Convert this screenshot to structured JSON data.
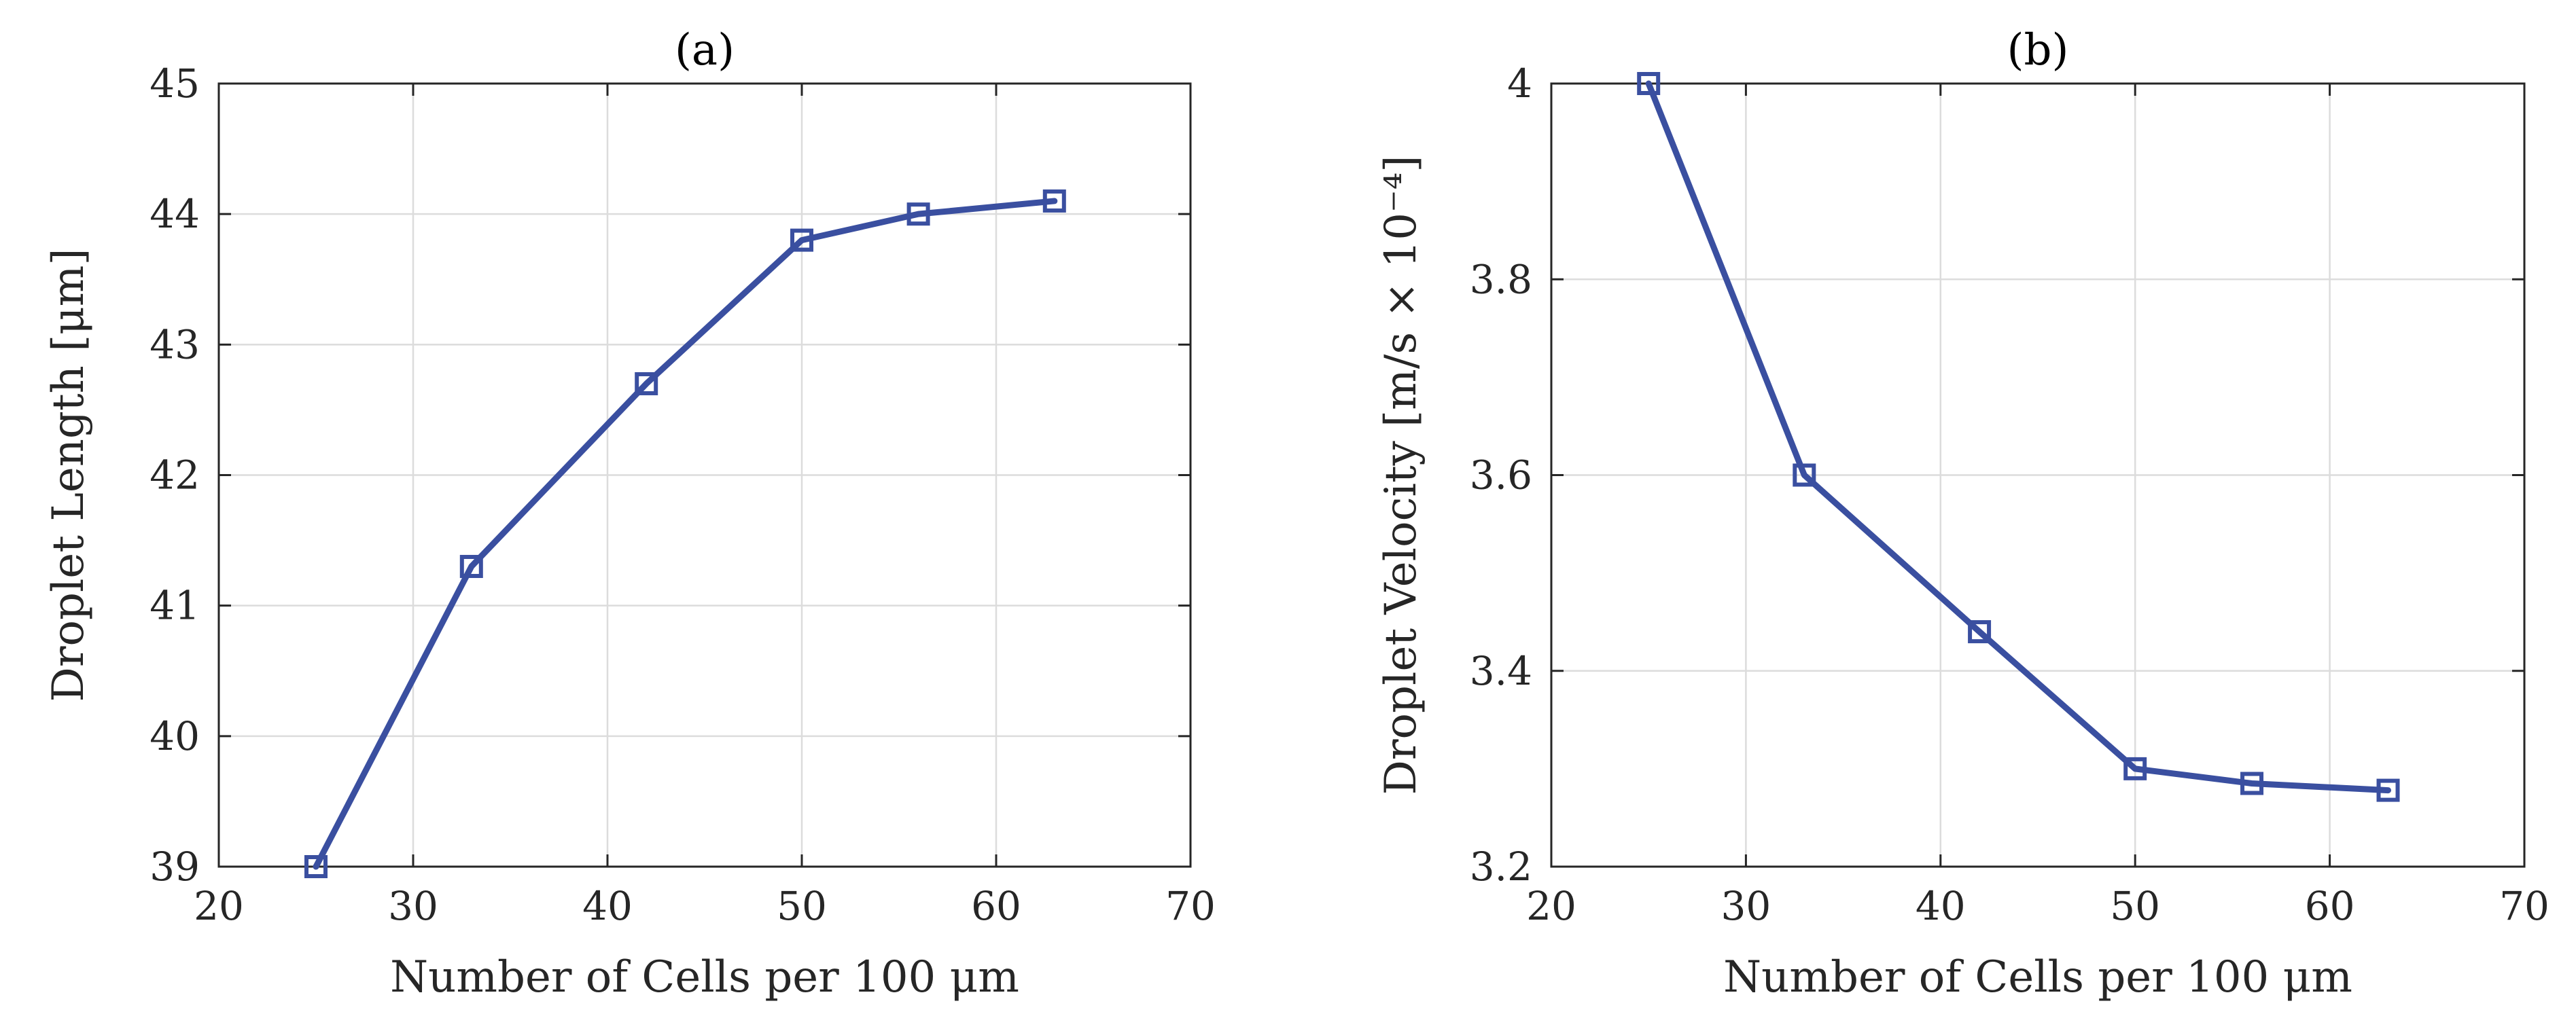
{
  "colors": {
    "series": "#3a4fa0",
    "axes": "#262626",
    "grid": "#dcdcdc"
  },
  "chart_data": [
    {
      "type": "line",
      "title": "(a)",
      "xlabel": "Number of Cells per 100 μm",
      "ylabel": "Droplet Length [μm]",
      "xlim": [
        20,
        70
      ],
      "ylim": [
        39,
        45
      ],
      "xticks": [
        20,
        30,
        40,
        50,
        60,
        70
      ],
      "yticks": [
        39,
        40,
        41,
        42,
        43,
        44,
        45
      ],
      "xtick_labels": [
        "20",
        "30",
        "40",
        "50",
        "60",
        "70"
      ],
      "ytick_labels": [
        "39",
        "40",
        "41",
        "42",
        "43",
        "44",
        "45"
      ],
      "grid": true,
      "marker": "square",
      "series": [
        {
          "name": "Droplet Length",
          "x": [
            25,
            33,
            42,
            50,
            56,
            63
          ],
          "y": [
            39.0,
            41.3,
            42.7,
            43.8,
            44.0,
            44.1
          ]
        }
      ]
    },
    {
      "type": "line",
      "title": "(b)",
      "xlabel": "Number of Cells per 100 μm",
      "ylabel": "Droplet Velocity [m/s × 10⁻⁴]",
      "xlim": [
        20,
        70
      ],
      "ylim": [
        3.2,
        4.0
      ],
      "xticks": [
        20,
        30,
        40,
        50,
        60,
        70
      ],
      "yticks": [
        3.2,
        3.4,
        3.6,
        3.8,
        4.0
      ],
      "xtick_labels": [
        "20",
        "30",
        "40",
        "50",
        "60",
        "70"
      ],
      "ytick_labels": [
        "3.2",
        "3.4",
        "3.6",
        "3.8",
        "4"
      ],
      "grid": true,
      "marker": "square",
      "series": [
        {
          "name": "Droplet Velocity",
          "x": [
            25,
            33,
            42,
            50,
            56,
            63
          ],
          "y": [
            4.0,
            3.6,
            3.44,
            3.3,
            3.285,
            3.278
          ]
        }
      ]
    }
  ]
}
